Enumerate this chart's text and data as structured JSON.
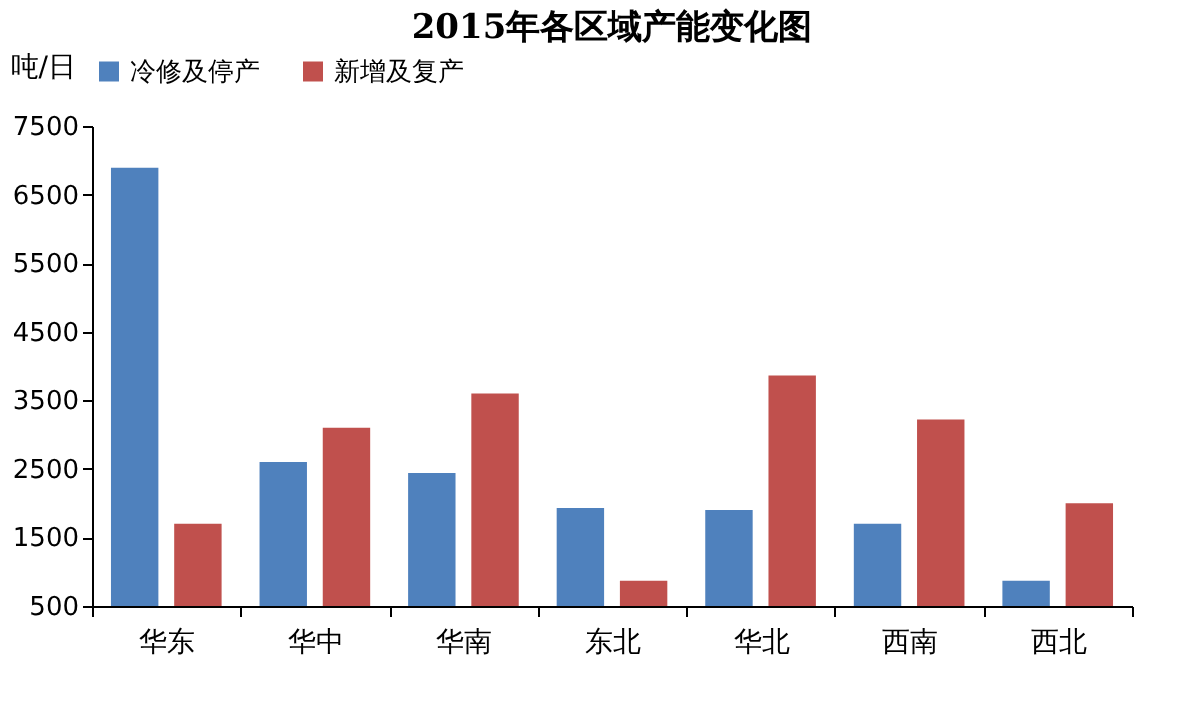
{
  "chart_data": {
    "type": "bar",
    "title": "2015年各区域产能变化图",
    "ylabel": "吨/日",
    "categories": [
      "华东",
      "华中",
      "华南",
      "东北",
      "华北",
      "西南",
      "西北"
    ],
    "series": [
      {
        "name": "冷修及停产",
        "color": "#4f81bd",
        "values": [
          6890,
          2600,
          2440,
          1930,
          1900,
          1700,
          870
        ]
      },
      {
        "name": "新增及复产",
        "color": "#c0504d",
        "values": [
          1700,
          3100,
          3600,
          870,
          3860,
          3220,
          2000
        ]
      }
    ],
    "ylim": [
      500,
      7500
    ],
    "yticks": [
      500,
      1500,
      2500,
      3500,
      4500,
      5500,
      6500,
      7500
    ],
    "grid": false,
    "legend": "top"
  }
}
